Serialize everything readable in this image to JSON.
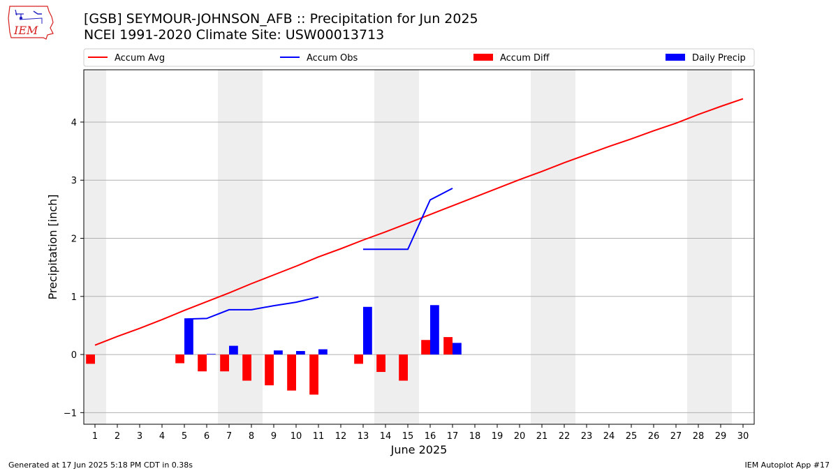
{
  "title": "[GSB] SEYMOUR-JOHNSON_AFB :: Precipitation for Jun 2025",
  "subtitle": "NCEI 1991-2020 Climate Site: USW00013713",
  "footer_left": "Generated at 17 Jun 2025 5:18 PM CDT in 0.38s",
  "footer_right": "IEM Autoplot App #17",
  "logo_text": "IEM",
  "colors": {
    "avg": "#ff0000",
    "obs": "#0000ff",
    "diff": "#ff0000",
    "daily": "#0000ff",
    "weekend": "#eeeeee",
    "grid": "#b0b0b0"
  },
  "chart_data": {
    "type": "bar",
    "xlabel": "June 2025",
    "ylabel": "Precipitation [inch]",
    "ylim": [
      -1.2,
      4.9
    ],
    "yticks": [
      -1,
      0,
      1,
      2,
      3,
      4
    ],
    "x": [
      1,
      2,
      3,
      4,
      5,
      6,
      7,
      8,
      9,
      10,
      11,
      12,
      13,
      14,
      15,
      16,
      17,
      18,
      19,
      20,
      21,
      22,
      23,
      24,
      25,
      26,
      27,
      28,
      29,
      30
    ],
    "weekend_days": [
      1,
      7,
      8,
      14,
      15,
      21,
      22,
      28,
      29
    ],
    "grid": "y",
    "legend": {
      "placement": "top",
      "entries": [
        "Accum Avg",
        "Accum Obs",
        "Accum Diff",
        "Daily Precip"
      ]
    },
    "series": [
      {
        "name": "Accum Avg",
        "type": "line",
        "values": [
          0.16,
          0.31,
          0.45,
          0.6,
          0.76,
          0.91,
          1.06,
          1.22,
          1.37,
          1.52,
          1.68,
          1.82,
          1.97,
          2.11,
          2.26,
          2.41,
          2.56,
          2.71,
          2.86,
          3.01,
          3.15,
          3.3,
          3.44,
          3.58,
          3.71,
          3.85,
          3.98,
          4.13,
          4.27,
          4.4
        ]
      },
      {
        "name": "Accum Obs",
        "type": "line",
        "values": [
          null,
          null,
          null,
          null,
          0.61,
          0.62,
          0.77,
          0.77,
          0.84,
          0.9,
          0.99,
          null,
          1.81,
          1.81,
          1.81,
          2.66,
          2.86,
          null,
          null,
          null,
          null,
          null,
          null,
          null,
          null,
          null,
          null,
          null,
          null,
          null
        ]
      },
      {
        "name": "Accum Diff",
        "type": "bar",
        "values": [
          -0.16,
          null,
          null,
          null,
          -0.15,
          -0.29,
          -0.29,
          -0.45,
          -0.53,
          -0.62,
          -0.69,
          null,
          -0.16,
          -0.3,
          -0.45,
          0.25,
          0.3,
          null,
          null,
          null,
          null,
          null,
          null,
          null,
          null,
          null,
          null,
          null,
          null,
          null
        ]
      },
      {
        "name": "Daily Precip",
        "type": "bar",
        "values": [
          null,
          null,
          null,
          null,
          0.61,
          0.01,
          0.15,
          0.0,
          0.07,
          0.06,
          0.09,
          null,
          0.82,
          0.0,
          0.0,
          0.85,
          0.2,
          null,
          null,
          null,
          null,
          null,
          null,
          null,
          null,
          null,
          null,
          null,
          null,
          null
        ]
      }
    ]
  }
}
